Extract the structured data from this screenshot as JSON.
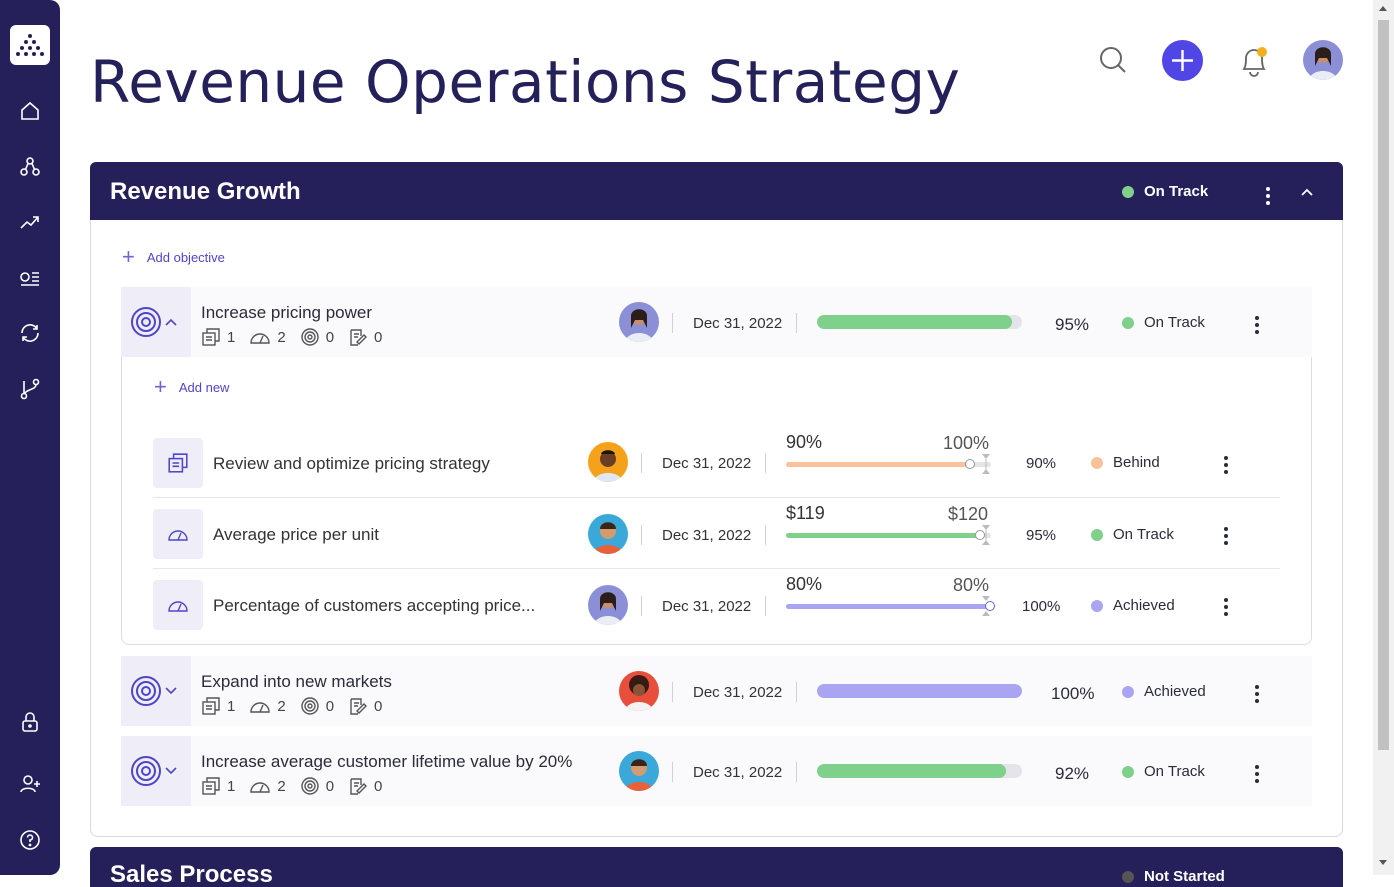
{
  "page": {
    "title": "Revenue Operations Strategy"
  },
  "colors": {
    "navy": "#25205a",
    "accent": "#4f46e5",
    "green": "#7fd08a",
    "orange": "#f9c29b",
    "purple": "#aaa5f3"
  },
  "section": {
    "title": "Revenue Growth",
    "status": "On Track",
    "add_objective": "Add objective",
    "add_new": "Add new"
  },
  "objectives": [
    {
      "name": "Increase pricing power",
      "counts": [
        "1",
        "2",
        "0",
        "0"
      ],
      "date": "Dec 31, 2022",
      "progress": 95,
      "pct": "95%",
      "status": "On Track"
    },
    {
      "name": "Expand into new markets",
      "counts": [
        "1",
        "2",
        "0",
        "0"
      ],
      "date": "Dec 31, 2022",
      "progress": 100,
      "pct": "100%",
      "status": "Achieved"
    },
    {
      "name": "Increase average customer lifetime value by 20%",
      "counts": [
        "1",
        "2",
        "0",
        "0"
      ],
      "date": "Dec 31, 2022",
      "progress": 92,
      "pct": "92%",
      "status": "On Track"
    }
  ],
  "key_results": [
    {
      "name": "Review and optimize pricing strategy",
      "date": "Dec 31, 2022",
      "current": "90%",
      "target": "100%",
      "progress": 90,
      "pct": "90%",
      "status": "Behind"
    },
    {
      "name": "Average price per unit",
      "date": "Dec 31, 2022",
      "current": "$119",
      "target": "$120",
      "progress": 95,
      "pct": "95%",
      "status": "On Track"
    },
    {
      "name": "Percentage of customers accepting price...",
      "date": "Dec 31, 2022",
      "current": "80%",
      "target": "80%",
      "progress": 100,
      "pct": "100%",
      "status": "Achieved"
    }
  ],
  "next_section": {
    "title": "Sales Process",
    "status": "Not Started"
  }
}
